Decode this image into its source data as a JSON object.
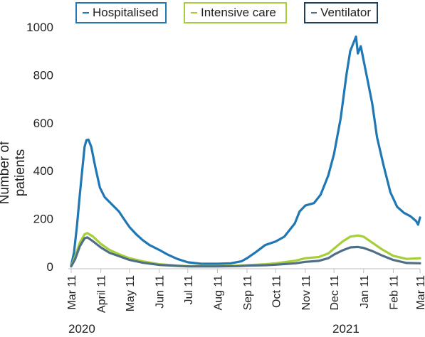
{
  "chart_data": {
    "type": "line",
    "ylabel": "Number of patients",
    "ylim": [
      0,
      1000
    ],
    "yticks": [
      0,
      200,
      400,
      600,
      800,
      1000
    ],
    "xlim": [
      "2020-03-11",
      "2021-03-11"
    ],
    "x_tick_labels": [
      "Mar 11",
      "April 11",
      "May 11",
      "Jun 11",
      "Jul 11",
      "Aug 11",
      "Sep 11",
      "Oct 11",
      "Nov 11",
      "Dec 11",
      "Jan 11",
      "Feb 11",
      "Mar 11"
    ],
    "x_tick_dates": [
      "2020-03-11",
      "2020-04-11",
      "2020-05-11",
      "2020-06-11",
      "2020-07-11",
      "2020-08-11",
      "2020-09-11",
      "2020-10-11",
      "2020-11-11",
      "2020-12-11",
      "2021-01-11",
      "2021-02-11",
      "2021-03-11"
    ],
    "year_labels": [
      "2020",
      "2021"
    ],
    "year_label_dates": [
      "2020-03-11",
      "2021-01-11"
    ],
    "grid": false,
    "legend_position": "top",
    "series": [
      {
        "name": "Hospitalised",
        "color": "#1f77b4",
        "points": [
          [
            "2020-03-11",
            5
          ],
          [
            "2020-03-14",
            60
          ],
          [
            "2020-03-17",
            170
          ],
          [
            "2020-03-20",
            300
          ],
          [
            "2020-03-23",
            420
          ],
          [
            "2020-03-25",
            500
          ],
          [
            "2020-03-27",
            528
          ],
          [
            "2020-03-29",
            530
          ],
          [
            "2020-04-01",
            500
          ],
          [
            "2020-04-05",
            420
          ],
          [
            "2020-04-10",
            330
          ],
          [
            "2020-04-15",
            290
          ],
          [
            "2020-04-20",
            270
          ],
          [
            "2020-04-25",
            250
          ],
          [
            "2020-04-30",
            230
          ],
          [
            "2020-05-05",
            200
          ],
          [
            "2020-05-11",
            165
          ],
          [
            "2020-05-18",
            135
          ],
          [
            "2020-05-25",
            110
          ],
          [
            "2020-06-01",
            90
          ],
          [
            "2020-06-11",
            70
          ],
          [
            "2020-06-20",
            50
          ],
          [
            "2020-06-30",
            32
          ],
          [
            "2020-07-11",
            18
          ],
          [
            "2020-07-25",
            12
          ],
          [
            "2020-08-11",
            12
          ],
          [
            "2020-08-25",
            14
          ],
          [
            "2020-09-05",
            22
          ],
          [
            "2020-09-11",
            35
          ],
          [
            "2020-09-20",
            60
          ],
          [
            "2020-09-30",
            90
          ],
          [
            "2020-10-11",
            105
          ],
          [
            "2020-10-20",
            125
          ],
          [
            "2020-10-31",
            180
          ],
          [
            "2020-11-05",
            230
          ],
          [
            "2020-11-11",
            255
          ],
          [
            "2020-11-20",
            265
          ],
          [
            "2020-11-27",
            300
          ],
          [
            "2020-12-05",
            380
          ],
          [
            "2020-12-11",
            470
          ],
          [
            "2020-12-18",
            620
          ],
          [
            "2020-12-24",
            800
          ],
          [
            "2020-12-28",
            900
          ],
          [
            "2021-01-01",
            940
          ],
          [
            "2021-01-03",
            960
          ],
          [
            "2021-01-05",
            890
          ],
          [
            "2021-01-08",
            920
          ],
          [
            "2021-01-11",
            860
          ],
          [
            "2021-01-15",
            780
          ],
          [
            "2021-01-20",
            680
          ],
          [
            "2021-01-25",
            540
          ],
          [
            "2021-02-01",
            420
          ],
          [
            "2021-02-08",
            310
          ],
          [
            "2021-02-15",
            250
          ],
          [
            "2021-02-22",
            225
          ],
          [
            "2021-03-01",
            210
          ],
          [
            "2021-03-07",
            190
          ],
          [
            "2021-03-09",
            175
          ],
          [
            "2021-03-11",
            205
          ]
        ]
      },
      {
        "name": "Intensive care",
        "color": "#a6ce39",
        "points": [
          [
            "2020-03-11",
            2
          ],
          [
            "2020-03-15",
            40
          ],
          [
            "2020-03-20",
            100
          ],
          [
            "2020-03-25",
            135
          ],
          [
            "2020-03-28",
            140
          ],
          [
            "2020-04-03",
            125
          ],
          [
            "2020-04-11",
            95
          ],
          [
            "2020-04-20",
            70
          ],
          [
            "2020-05-01",
            50
          ],
          [
            "2020-05-11",
            35
          ],
          [
            "2020-05-25",
            22
          ],
          [
            "2020-06-11",
            10
          ],
          [
            "2020-07-01",
            4
          ],
          [
            "2020-07-11",
            2
          ],
          [
            "2020-08-11",
            2
          ],
          [
            "2020-09-01",
            4
          ],
          [
            "2020-09-11",
            6
          ],
          [
            "2020-10-01",
            10
          ],
          [
            "2020-10-11",
            14
          ],
          [
            "2020-11-01",
            25
          ],
          [
            "2020-11-11",
            35
          ],
          [
            "2020-11-25",
            40
          ],
          [
            "2020-12-05",
            55
          ],
          [
            "2020-12-11",
            75
          ],
          [
            "2020-12-20",
            105
          ],
          [
            "2020-12-28",
            125
          ],
          [
            "2021-01-05",
            130
          ],
          [
            "2021-01-11",
            125
          ],
          [
            "2021-01-20",
            100
          ],
          [
            "2021-01-31",
            70
          ],
          [
            "2021-02-11",
            45
          ],
          [
            "2021-02-25",
            32
          ],
          [
            "2021-03-11",
            35
          ]
        ]
      },
      {
        "name": "Ventilator",
        "color": "#4f6f86",
        "points": [
          [
            "2020-03-11",
            1
          ],
          [
            "2020-03-15",
            30
          ],
          [
            "2020-03-20",
            85
          ],
          [
            "2020-03-25",
            118
          ],
          [
            "2020-03-28",
            122
          ],
          [
            "2020-04-03",
            105
          ],
          [
            "2020-04-11",
            80
          ],
          [
            "2020-04-20",
            58
          ],
          [
            "2020-05-01",
            42
          ],
          [
            "2020-05-11",
            28
          ],
          [
            "2020-05-25",
            16
          ],
          [
            "2020-06-11",
            7
          ],
          [
            "2020-07-01",
            3
          ],
          [
            "2020-07-11",
            1
          ],
          [
            "2020-08-11",
            1
          ],
          [
            "2020-09-01",
            2
          ],
          [
            "2020-09-11",
            4
          ],
          [
            "2020-10-01",
            6
          ],
          [
            "2020-10-11",
            8
          ],
          [
            "2020-11-01",
            14
          ],
          [
            "2020-11-11",
            20
          ],
          [
            "2020-11-25",
            24
          ],
          [
            "2020-12-05",
            35
          ],
          [
            "2020-12-11",
            50
          ],
          [
            "2020-12-20",
            68
          ],
          [
            "2020-12-28",
            80
          ],
          [
            "2021-01-05",
            82
          ],
          [
            "2021-01-11",
            78
          ],
          [
            "2021-01-20",
            65
          ],
          [
            "2021-01-31",
            45
          ],
          [
            "2021-02-11",
            28
          ],
          [
            "2021-02-25",
            15
          ],
          [
            "2021-03-11",
            14
          ]
        ]
      }
    ]
  }
}
